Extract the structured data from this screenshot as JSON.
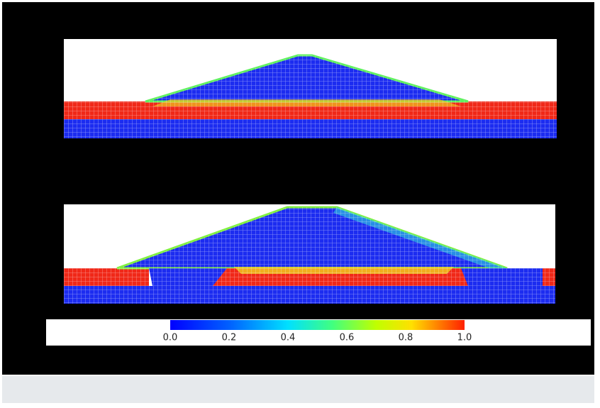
{
  "colorbar": {
    "ticks": [
      "0.0",
      "0.2",
      "0.4",
      "0.6",
      "0.8",
      "1.0"
    ]
  }
}
